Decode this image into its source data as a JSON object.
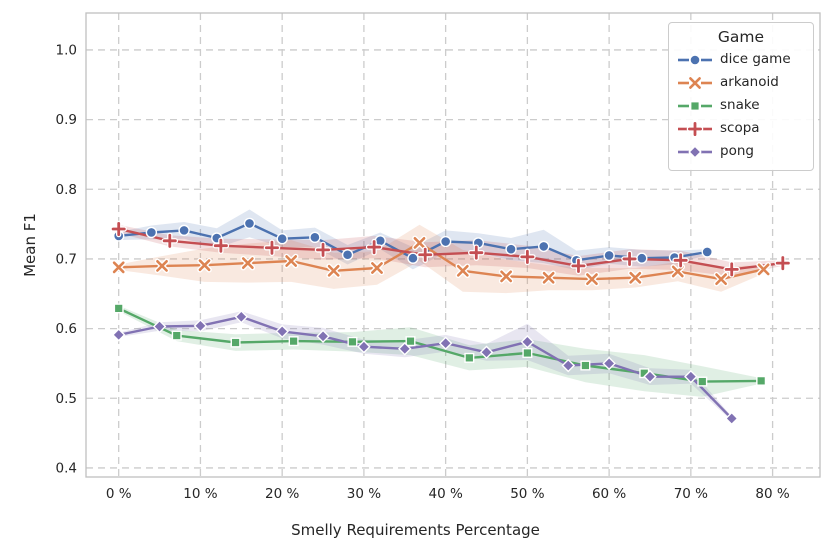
{
  "chart_data": {
    "type": "line",
    "title": "",
    "xlabel": "Smelly Requirements Percentage",
    "ylabel": "Mean F1",
    "legend_title": "Game",
    "legend_position": "upper right",
    "grid": "dashed",
    "xlim": [
      -4,
      85.8
    ],
    "ylim": [
      0.387,
      1.053
    ],
    "xticks": [
      0,
      10,
      20,
      30,
      40,
      50,
      60,
      70,
      80
    ],
    "xtick_labels": [
      "0 %",
      "10 %",
      "20 %",
      "30 %",
      "40 %",
      "50 %",
      "60 %",
      "70 %",
      "80 %"
    ],
    "yticks": [
      0.4,
      0.5,
      0.6,
      0.7,
      0.8,
      0.9,
      1.0
    ],
    "ytick_labels": [
      "0.4",
      "0.5",
      "0.6",
      "0.7",
      "0.8",
      "0.9",
      "1.0"
    ],
    "series": [
      {
        "name": "dice game",
        "color": "#4C72B0",
        "marker": "circle",
        "x": [
          0,
          4,
          8,
          12,
          16,
          20,
          24,
          28,
          32,
          36,
          40,
          44,
          48,
          52,
          56,
          60,
          64,
          68,
          72
        ],
        "y": [
          0.733,
          0.738,
          0.741,
          0.73,
          0.751,
          0.729,
          0.731,
          0.706,
          0.726,
          0.701,
          0.725,
          0.723,
          0.714,
          0.718,
          0.698,
          0.705,
          0.701,
          0.702,
          0.71
        ],
        "band": [
          0.006,
          0.01,
          0.012,
          0.014,
          0.02,
          0.012,
          0.014,
          0.014,
          0.012,
          0.016,
          0.016,
          0.014,
          0.016,
          0.024,
          0.014,
          0.012,
          0.012,
          0.01,
          0.004
        ]
      },
      {
        "name": "arkanoid",
        "color": "#DD8452",
        "marker": "x",
        "x": [
          0,
          5.3,
          10.5,
          15.8,
          21.1,
          26.3,
          31.6,
          36.8,
          42.1,
          47.4,
          52.6,
          57.9,
          63.2,
          68.4,
          73.7,
          78.9
        ],
        "y": [
          0.688,
          0.69,
          0.691,
          0.694,
          0.697,
          0.683,
          0.687,
          0.723,
          0.683,
          0.675,
          0.673,
          0.671,
          0.673,
          0.682,
          0.671,
          0.685
        ],
        "band": [
          0.004,
          0.014,
          0.024,
          0.028,
          0.03,
          0.026,
          0.024,
          0.026,
          0.03,
          0.024,
          0.018,
          0.016,
          0.014,
          0.014,
          0.018,
          0.006
        ]
      },
      {
        "name": "snake",
        "color": "#55A868",
        "marker": "square",
        "x": [
          0,
          7.1,
          14.3,
          21.4,
          28.6,
          35.7,
          42.9,
          50,
          57.1,
          64.3,
          71.4,
          78.6
        ],
        "y": [
          0.629,
          0.59,
          0.58,
          0.582,
          0.581,
          0.582,
          0.558,
          0.565,
          0.547,
          0.536,
          0.524,
          0.525
        ],
        "band": [
          0.004,
          0.008,
          0.012,
          0.012,
          0.014,
          0.02,
          0.018,
          0.02,
          0.024,
          0.026,
          0.022,
          0.004
        ]
      },
      {
        "name": "scopa",
        "color": "#C44E52",
        "marker": "plus",
        "x": [
          0,
          6.25,
          12.5,
          18.75,
          25,
          31.25,
          37.5,
          43.75,
          50,
          56.25,
          62.5,
          68.75,
          75,
          81.25
        ],
        "y": [
          0.743,
          0.726,
          0.719,
          0.716,
          0.713,
          0.717,
          0.706,
          0.709,
          0.703,
          0.69,
          0.7,
          0.698,
          0.685,
          0.694
        ],
        "band": [
          0.006,
          0.008,
          0.01,
          0.012,
          0.014,
          0.016,
          0.018,
          0.018,
          0.016,
          0.014,
          0.014,
          0.014,
          0.01,
          0.004
        ]
      },
      {
        "name": "pong",
        "color": "#8172B3",
        "marker": "diamond",
        "x": [
          0,
          5,
          10,
          15,
          20,
          25,
          30,
          35,
          40,
          45,
          50,
          55,
          60,
          65,
          70,
          75
        ],
        "y": [
          0.591,
          0.603,
          0.604,
          0.617,
          0.596,
          0.589,
          0.574,
          0.571,
          0.579,
          0.566,
          0.581,
          0.547,
          0.55,
          0.531,
          0.531,
          0.471
        ],
        "band": [
          0.003,
          0.006,
          0.008,
          0.008,
          0.01,
          0.012,
          0.01,
          0.012,
          0.012,
          0.012,
          0.026,
          0.014,
          0.014,
          0.012,
          0.01,
          0.003
        ]
      }
    ]
  },
  "style": {
    "grid_color": "#cccccc",
    "spine_color": "#c0c0c0",
    "text_color": "#262626",
    "band_opacity": 0.18
  }
}
